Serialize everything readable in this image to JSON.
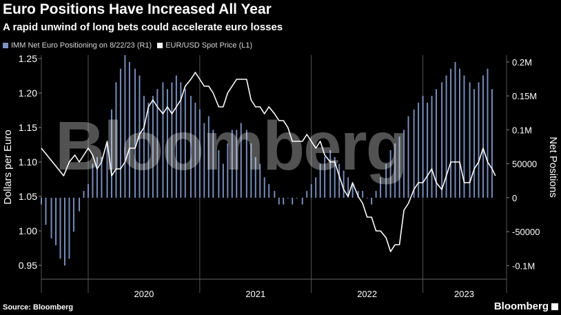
{
  "header": {
    "title": "Euro Positions Have Increased All Year",
    "subtitle": "A rapid unwind of long bets could accelerate euro losses"
  },
  "legend": [
    {
      "label": "IMM Net Euro Positioning  on 8/22/23 (R1)",
      "color": "#7e93c4"
    },
    {
      "label": "EUR/USD Spot Price (L1)",
      "color": "#ffffff"
    }
  ],
  "footer": {
    "source": "Source: Bloomberg",
    "brand": "Bloomberg"
  },
  "watermark": "Bloomberg",
  "chart_data": {
    "type": "bar+line",
    "x_tick_labels": [
      "2020",
      "2021",
      "2022",
      "2023"
    ],
    "left_axis": {
      "label": "Dollars per Euro",
      "range": [
        0.93,
        1.255
      ],
      "ticks": [
        0.95,
        1.0,
        1.05,
        1.1,
        1.15,
        1.2,
        1.25
      ],
      "tick_labels": [
        "0.95",
        "1.00",
        "1.05",
        "1.10",
        "1.15",
        "1.20",
        "1.25"
      ]
    },
    "right_axis": {
      "label": "Net Positions",
      "range": [
        -0.12,
        0.21
      ],
      "ticks": [
        -0.1,
        -0.05,
        0,
        0.05,
        0.1,
        0.15,
        0.2
      ],
      "tick_labels": [
        "-0.1M",
        "-50000",
        "0",
        "50000",
        "0.1M",
        "0.15M",
        "0.2M"
      ]
    },
    "series": [
      {
        "name": "IMM Net Euro Positioning  on 8/22/23 (R1)",
        "axis": "right",
        "type": "bar",
        "unit": "millions of contracts",
        "points": [
          [
            2019.58,
            -0.01
          ],
          [
            2019.62,
            -0.04
          ],
          [
            2019.67,
            -0.06
          ],
          [
            2019.71,
            -0.07
          ],
          [
            2019.75,
            -0.09
          ],
          [
            2019.79,
            -0.1
          ],
          [
            2019.83,
            -0.09
          ],
          [
            2019.87,
            -0.05
          ],
          [
            2019.92,
            -0.02
          ],
          [
            2019.96,
            0.01
          ],
          [
            2020.0,
            0.02
          ],
          [
            2020.04,
            0.05
          ],
          [
            2020.08,
            0.06
          ],
          [
            2020.12,
            0.06
          ],
          [
            2020.17,
            0.08
          ],
          [
            2020.21,
            0.13
          ],
          [
            2020.25,
            0.17
          ],
          [
            2020.29,
            0.19
          ],
          [
            2020.33,
            0.21
          ],
          [
            2020.37,
            0.2
          ],
          [
            2020.42,
            0.19
          ],
          [
            2020.46,
            0.18
          ],
          [
            2020.5,
            0.15
          ],
          [
            2020.54,
            0.14
          ],
          [
            2020.58,
            0.15
          ],
          [
            2020.62,
            0.16
          ],
          [
            2020.67,
            0.17
          ],
          [
            2020.71,
            0.16
          ],
          [
            2020.75,
            0.17
          ],
          [
            2020.79,
            0.18
          ],
          [
            2020.83,
            0.17
          ],
          [
            2020.87,
            0.16
          ],
          [
            2020.92,
            0.15
          ],
          [
            2020.96,
            0.14
          ],
          [
            2021.0,
            0.13
          ],
          [
            2021.04,
            0.11
          ],
          [
            2021.08,
            0.12
          ],
          [
            2021.12,
            0.1
          ],
          [
            2021.17,
            0.07
          ],
          [
            2021.21,
            0.05
          ],
          [
            2021.25,
            0.08
          ],
          [
            2021.29,
            0.1
          ],
          [
            2021.33,
            0.1
          ],
          [
            2021.37,
            0.11
          ],
          [
            2021.42,
            0.1
          ],
          [
            2021.46,
            0.08
          ],
          [
            2021.5,
            0.06
          ],
          [
            2021.54,
            0.05
          ],
          [
            2021.58,
            0.03
          ],
          [
            2021.62,
            0.02
          ],
          [
            2021.67,
            0.01
          ],
          [
            2021.71,
            -0.01
          ],
          [
            2021.75,
            -0.01
          ],
          [
            2021.79,
            0.0
          ],
          [
            2021.83,
            -0.01
          ],
          [
            2021.87,
            0.0
          ],
          [
            2021.92,
            -0.01
          ],
          [
            2021.96,
            0.01
          ],
          [
            2022.0,
            0.02
          ],
          [
            2022.04,
            0.03
          ],
          [
            2022.08,
            0.05
          ],
          [
            2022.12,
            0.06
          ],
          [
            2022.17,
            0.07
          ],
          [
            2022.21,
            0.06
          ],
          [
            2022.25,
            0.05
          ],
          [
            2022.29,
            0.04
          ],
          [
            2022.33,
            0.03
          ],
          [
            2022.37,
            0.02
          ],
          [
            2022.42,
            0.01
          ],
          [
            2022.46,
            0.01
          ],
          [
            2022.5,
            0.0
          ],
          [
            2022.54,
            -0.01
          ],
          [
            2022.58,
            0.01
          ],
          [
            2022.62,
            0.03
          ],
          [
            2022.67,
            0.05
          ],
          [
            2022.71,
            0.07
          ],
          [
            2022.75,
            0.08
          ],
          [
            2022.79,
            0.09
          ],
          [
            2022.83,
            0.1
          ],
          [
            2022.87,
            0.12
          ],
          [
            2022.92,
            0.13
          ],
          [
            2022.96,
            0.14
          ],
          [
            2023.0,
            0.15
          ],
          [
            2023.04,
            0.14
          ],
          [
            2023.08,
            0.15
          ],
          [
            2023.12,
            0.16
          ],
          [
            2023.17,
            0.17
          ],
          [
            2023.21,
            0.18
          ],
          [
            2023.25,
            0.19
          ],
          [
            2023.29,
            0.2
          ],
          [
            2023.33,
            0.19
          ],
          [
            2023.37,
            0.18
          ],
          [
            2023.42,
            0.17
          ],
          [
            2023.46,
            0.16
          ],
          [
            2023.5,
            0.17
          ],
          [
            2023.54,
            0.18
          ],
          [
            2023.58,
            0.19
          ],
          [
            2023.62,
            0.16
          ]
        ]
      },
      {
        "name": "EUR/USD Spot Price (L1)",
        "axis": "left",
        "type": "line",
        "unit": "USD per EUR",
        "points": [
          [
            2019.58,
            1.12
          ],
          [
            2019.63,
            1.11
          ],
          [
            2019.68,
            1.1
          ],
          [
            2019.73,
            1.09
          ],
          [
            2019.78,
            1.08
          ],
          [
            2019.83,
            1.1
          ],
          [
            2019.88,
            1.11
          ],
          [
            2019.92,
            1.1
          ],
          [
            2019.96,
            1.11
          ],
          [
            2020.0,
            1.12
          ],
          [
            2020.04,
            1.11
          ],
          [
            2020.08,
            1.09
          ],
          [
            2020.12,
            1.1
          ],
          [
            2020.17,
            1.13
          ],
          [
            2020.21,
            1.08
          ],
          [
            2020.25,
            1.09
          ],
          [
            2020.29,
            1.09
          ],
          [
            2020.33,
            1.1
          ],
          [
            2020.37,
            1.12
          ],
          [
            2020.42,
            1.12
          ],
          [
            2020.46,
            1.14
          ],
          [
            2020.5,
            1.15
          ],
          [
            2020.54,
            1.18
          ],
          [
            2020.58,
            1.19
          ],
          [
            2020.62,
            1.18
          ],
          [
            2020.67,
            1.17
          ],
          [
            2020.71,
            1.18
          ],
          [
            2020.75,
            1.17
          ],
          [
            2020.79,
            1.18
          ],
          [
            2020.83,
            1.19
          ],
          [
            2020.87,
            1.21
          ],
          [
            2020.92,
            1.22
          ],
          [
            2020.96,
            1.23
          ],
          [
            2021.0,
            1.22
          ],
          [
            2021.04,
            1.21
          ],
          [
            2021.08,
            1.21
          ],
          [
            2021.12,
            1.2
          ],
          [
            2021.17,
            1.18
          ],
          [
            2021.21,
            1.18
          ],
          [
            2021.25,
            1.2
          ],
          [
            2021.29,
            1.21
          ],
          [
            2021.33,
            1.22
          ],
          [
            2021.37,
            1.22
          ],
          [
            2021.42,
            1.22
          ],
          [
            2021.46,
            1.19
          ],
          [
            2021.5,
            1.18
          ],
          [
            2021.54,
            1.18
          ],
          [
            2021.58,
            1.17
          ],
          [
            2021.62,
            1.18
          ],
          [
            2021.67,
            1.17
          ],
          [
            2021.71,
            1.16
          ],
          [
            2021.75,
            1.16
          ],
          [
            2021.79,
            1.15
          ],
          [
            2021.83,
            1.13
          ],
          [
            2021.87,
            1.13
          ],
          [
            2021.92,
            1.13
          ],
          [
            2021.96,
            1.14
          ],
          [
            2022.0,
            1.13
          ],
          [
            2022.04,
            1.12
          ],
          [
            2022.08,
            1.13
          ],
          [
            2022.12,
            1.11
          ],
          [
            2022.17,
            1.1
          ],
          [
            2022.21,
            1.1
          ],
          [
            2022.25,
            1.08
          ],
          [
            2022.29,
            1.06
          ],
          [
            2022.33,
            1.05
          ],
          [
            2022.37,
            1.07
          ],
          [
            2022.42,
            1.05
          ],
          [
            2022.46,
            1.04
          ],
          [
            2022.5,
            1.02
          ],
          [
            2022.54,
            1.02
          ],
          [
            2022.58,
            1.0
          ],
          [
            2022.62,
            1.0
          ],
          [
            2022.67,
            0.99
          ],
          [
            2022.71,
            0.97
          ],
          [
            2022.75,
            0.98
          ],
          [
            2022.79,
            0.98
          ],
          [
            2022.83,
            1.03
          ],
          [
            2022.87,
            1.04
          ],
          [
            2022.92,
            1.06
          ],
          [
            2022.96,
            1.07
          ],
          [
            2023.0,
            1.07
          ],
          [
            2023.04,
            1.08
          ],
          [
            2023.08,
            1.09
          ],
          [
            2023.12,
            1.07
          ],
          [
            2023.17,
            1.06
          ],
          [
            2023.21,
            1.08
          ],
          [
            2023.25,
            1.1
          ],
          [
            2023.29,
            1.1
          ],
          [
            2023.33,
            1.1
          ],
          [
            2023.37,
            1.07
          ],
          [
            2023.42,
            1.07
          ],
          [
            2023.46,
            1.09
          ],
          [
            2023.5,
            1.1
          ],
          [
            2023.54,
            1.12
          ],
          [
            2023.58,
            1.1
          ],
          [
            2023.62,
            1.09
          ],
          [
            2023.65,
            1.08
          ]
        ]
      }
    ],
    "grid": false,
    "legend_position": "top-left"
  }
}
